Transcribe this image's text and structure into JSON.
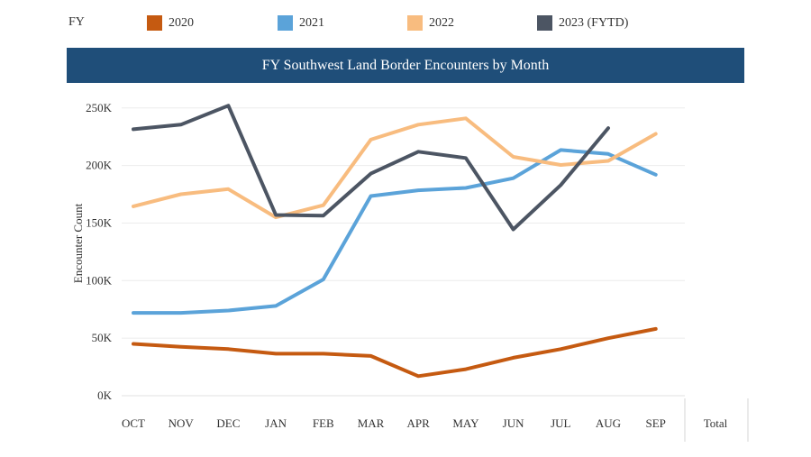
{
  "legend": {
    "title": "FY",
    "items": [
      {
        "name": "2020",
        "color": "#c55a11"
      },
      {
        "name": "2021",
        "color": "#5ba3d9"
      },
      {
        "name": "2022",
        "color": "#f8bc7f"
      },
      {
        "name": "2023 (FYTD)",
        "color": "#4c5563"
      }
    ]
  },
  "header": {
    "title": "FY Southwest Land Border Encounters by Month"
  },
  "chart_data": {
    "type": "line",
    "title": "FY Southwest Land Border Encounters by Month",
    "ylabel": "Encounter Count",
    "xlabel": "",
    "categories": [
      "OCT",
      "NOV",
      "DEC",
      "JAN",
      "FEB",
      "MAR",
      "APR",
      "MAY",
      "JUN",
      "JUL",
      "AUG",
      "SEP"
    ],
    "extra_column_label": "Total",
    "ylim": [
      0,
      260000
    ],
    "yticks": [
      0,
      50000,
      100000,
      150000,
      200000,
      250000
    ],
    "ytick_labels": [
      "0K",
      "50K",
      "100K",
      "150K",
      "200K",
      "250K"
    ],
    "grid": true,
    "legend_position": "top",
    "series": [
      {
        "name": "2020",
        "color": "#c55a11",
        "values": [
          45000,
          42500,
          40500,
          36500,
          36500,
          34500,
          17000,
          23000,
          33000,
          40500,
          50000,
          58000
        ]
      },
      {
        "name": "2021",
        "color": "#5ba3d9",
        "values": [
          72000,
          72000,
          74000,
          78000,
          101000,
          173500,
          178500,
          180500,
          189000,
          213500,
          210000,
          192000
        ]
      },
      {
        "name": "2022",
        "color": "#f8bc7f",
        "values": [
          164500,
          175000,
          179500,
          155000,
          165500,
          222500,
          235500,
          241000,
          207500,
          200500,
          204000,
          227500
        ]
      },
      {
        "name": "2023 (FYTD)",
        "color": "#4c5563",
        "values": [
          231500,
          235500,
          252000,
          157000,
          156500,
          193000,
          212000,
          206500,
          144500,
          183000,
          232500,
          null
        ]
      }
    ]
  }
}
